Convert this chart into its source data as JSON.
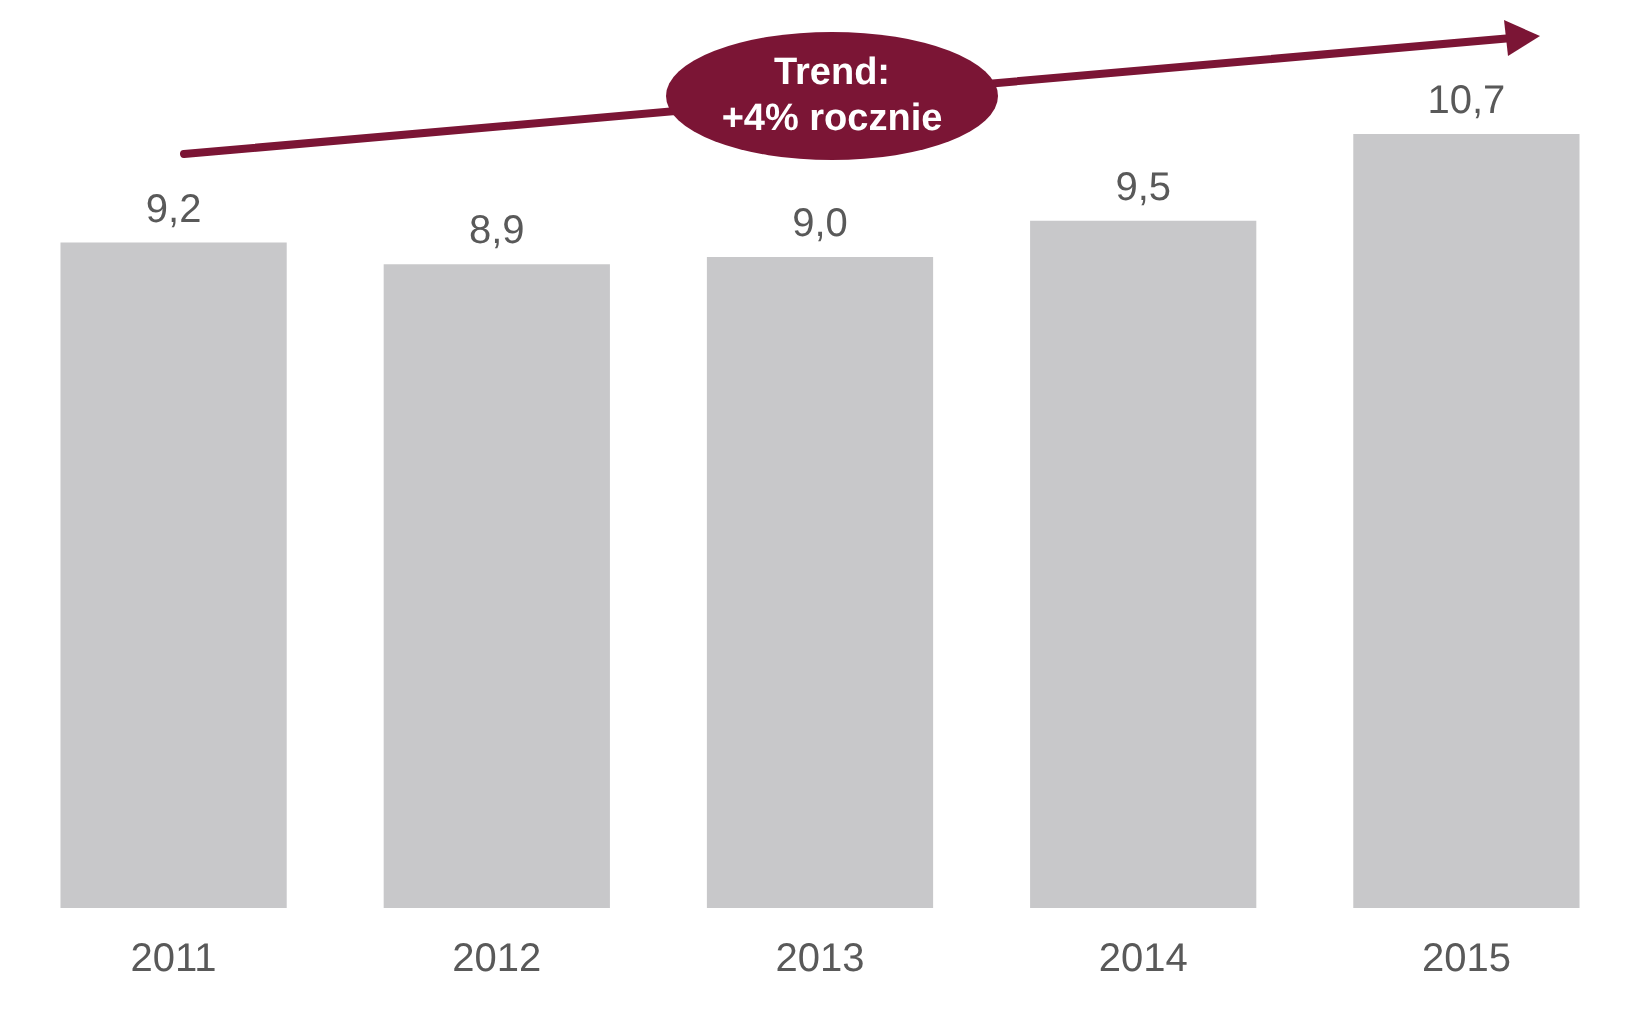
{
  "chart_data": {
    "type": "bar",
    "categories": [
      "2011",
      "2012",
      "2013",
      "2014",
      "2015"
    ],
    "values": [
      9.2,
      8.9,
      9.0,
      9.5,
      10.7
    ],
    "color": "#c8c8ca",
    "value_labels": [
      "9,2",
      "8,9",
      "9,0",
      "9,5",
      "10,7"
    ],
    "annotations": [
      "Trend:\n+4% rocznie"
    ]
  }
}
